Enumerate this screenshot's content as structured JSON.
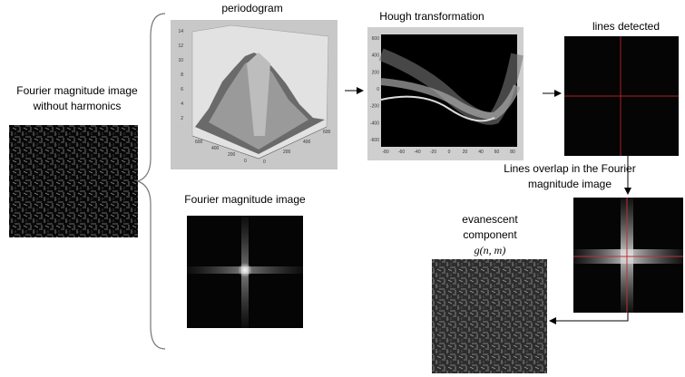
{
  "left": {
    "title_line1": "Fourier magnitude image",
    "title_line2": "without harmonics"
  },
  "periodogram": {
    "title": "periodogram",
    "zticks": [
      14,
      12,
      10,
      8,
      6,
      4,
      2
    ],
    "xticks": [
      600,
      400,
      200,
      0
    ],
    "yticks": [
      0,
      200,
      400,
      600
    ]
  },
  "hough": {
    "title": "Hough transformation",
    "yticks": [
      -600,
      -400,
      -200,
      0,
      200,
      400,
      600
    ],
    "xticks": [
      -80,
      -60,
      -40,
      -20,
      0,
      20,
      40,
      60,
      80
    ]
  },
  "lines_detected": {
    "title": "lines detected"
  },
  "overlap": {
    "title_line1": "Lines overlap in the Fourier",
    "title_line2": "magnitude image"
  },
  "fourier": {
    "title": "Fourier magnitude image"
  },
  "evanescent": {
    "title_line1": "evanescent",
    "title_line2": "component",
    "formula": "g(n, m)"
  }
}
